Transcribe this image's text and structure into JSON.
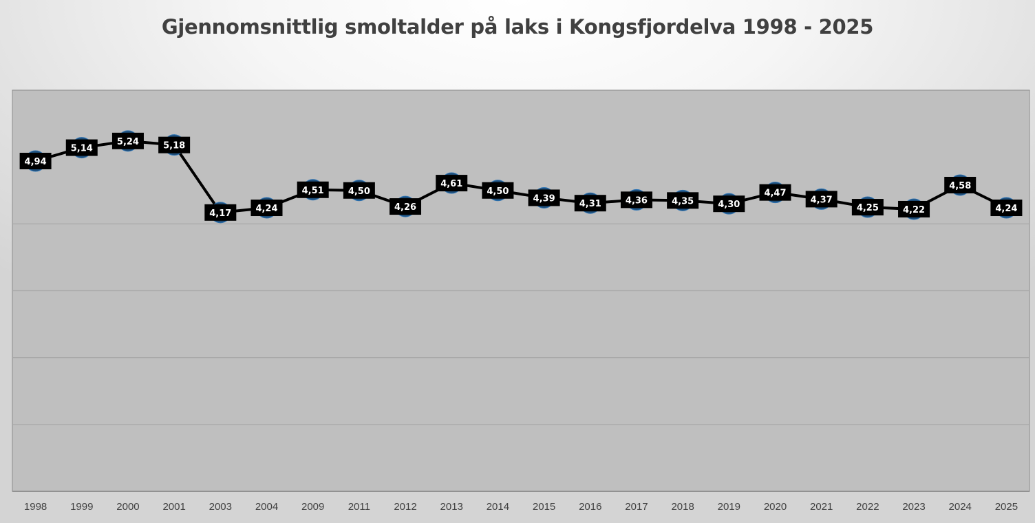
{
  "chart_data": {
    "type": "line",
    "title": "Gjennomsnittlig smoltalder på laks i Kongsfjordelva 1998 - 2025",
    "xlabel": "",
    "ylabel": "",
    "categories": [
      "1998",
      "1999",
      "2000",
      "2001",
      "2003",
      "2004",
      "2009",
      "2011",
      "2012",
      "2013",
      "2014",
      "2015",
      "2016",
      "2017",
      "2018",
      "2019",
      "2020",
      "2021",
      "2022",
      "2023",
      "2024",
      "2025"
    ],
    "series": [
      {
        "values": [
          4.94,
          5.14,
          5.24,
          5.18,
          4.17,
          4.24,
          4.51,
          4.5,
          4.26,
          4.61,
          4.5,
          4.39,
          4.31,
          4.36,
          4.35,
          4.3,
          4.47,
          4.37,
          4.25,
          4.22,
          4.58,
          4.24
        ],
        "data_labels": [
          "4,94",
          "5,14",
          "5,24",
          "5,18",
          "4,17",
          "4,24",
          "4,51",
          "4,50",
          "4,26",
          "4,61",
          "4,50",
          "4,39",
          "4,31",
          "4,36",
          "4,35",
          "4,30",
          "4,47",
          "4,37",
          "4,25",
          "4,22",
          "4,58",
          "4,24"
        ],
        "line_color": "#000000",
        "marker_color": "#1f4e79",
        "label_background": "#000000",
        "label_text_color": "#ffffff"
      }
    ],
    "ylim": [
      0,
      6
    ],
    "gridlines": [
      1,
      2,
      3,
      4
    ],
    "grid": true,
    "y_tick_labels_shown": false,
    "legend": "none",
    "plot_background": "#bfbfbf",
    "gridline_color": "#a6a6a6"
  }
}
